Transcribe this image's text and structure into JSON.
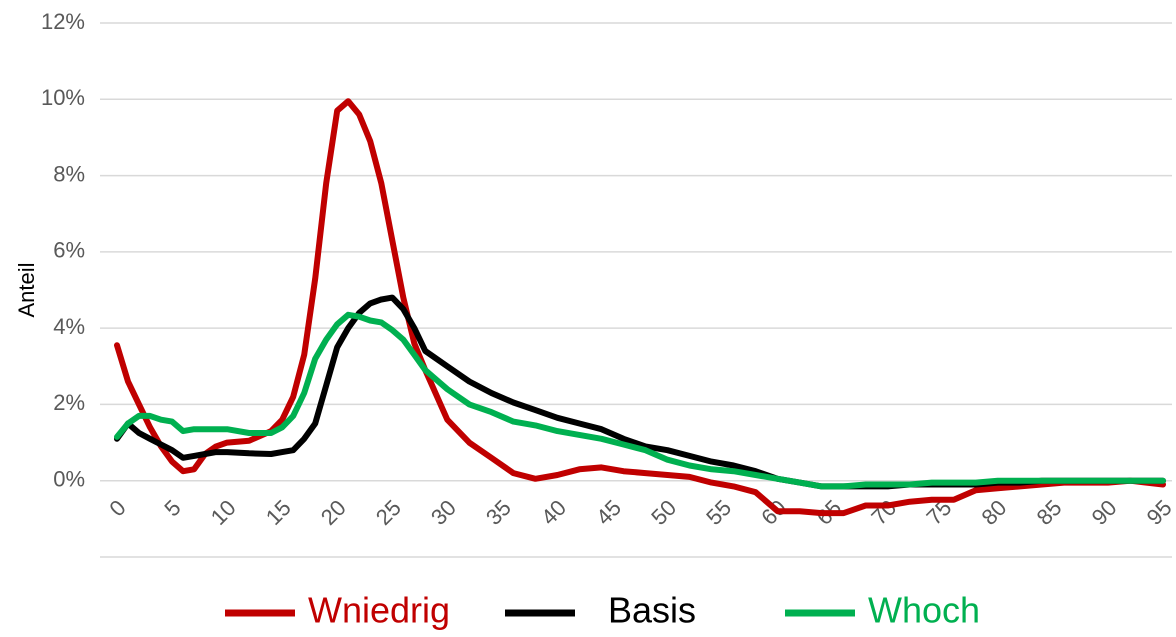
{
  "chart_data": {
    "type": "line",
    "ylabel": "Anteil",
    "x": [
      0,
      1,
      2,
      3,
      4,
      5,
      6,
      7,
      8,
      9,
      10,
      12,
      14,
      15,
      16,
      17,
      18,
      19,
      20,
      21,
      22,
      23,
      24,
      25,
      26,
      27,
      28,
      30,
      32,
      34,
      36,
      38,
      40,
      42,
      44,
      46,
      48,
      50,
      52,
      54,
      56,
      58,
      60,
      62,
      64,
      66,
      68,
      70,
      72,
      74,
      76,
      78,
      80,
      82,
      84,
      86,
      88,
      90,
      92,
      95
    ],
    "series": [
      {
        "name": "Wniedrig",
        "color": "#c00000",
        "values": [
          3.55,
          2.6,
          2.0,
          1.4,
          0.9,
          0.5,
          0.25,
          0.3,
          0.7,
          0.9,
          1.0,
          1.05,
          1.3,
          1.6,
          2.2,
          3.3,
          5.3,
          7.8,
          9.7,
          9.95,
          9.6,
          8.9,
          7.8,
          6.3,
          4.8,
          3.6,
          2.9,
          1.6,
          1.0,
          0.6,
          0.2,
          0.05,
          0.15,
          0.3,
          0.35,
          0.25,
          0.2,
          0.15,
          0.1,
          -0.05,
          -0.15,
          -0.3,
          -0.8,
          -0.8,
          -0.85,
          -0.85,
          -0.65,
          -0.65,
          -0.55,
          -0.5,
          -0.5,
          -0.25,
          -0.2,
          -0.15,
          -0.1,
          -0.05,
          -0.05,
          -0.05,
          0,
          -0.1
        ]
      },
      {
        "name": "Basis",
        "color": "#000000",
        "values": [
          1.1,
          1.5,
          1.25,
          1.1,
          0.95,
          0.8,
          0.6,
          0.65,
          0.7,
          0.75,
          0.75,
          0.72,
          0.7,
          0.75,
          0.8,
          1.1,
          1.5,
          2.5,
          3.5,
          4.0,
          4.4,
          4.65,
          4.75,
          4.8,
          4.5,
          4.0,
          3.4,
          3.0,
          2.6,
          2.3,
          2.05,
          1.85,
          1.65,
          1.5,
          1.35,
          1.1,
          0.9,
          0.8,
          0.65,
          0.5,
          0.4,
          0.25,
          0.05,
          -0.05,
          -0.15,
          -0.15,
          -0.15,
          -0.15,
          -0.1,
          -0.1,
          -0.1,
          -0.1,
          -0.05,
          -0.05,
          0,
          0,
          0,
          0,
          0,
          0
        ]
      },
      {
        "name": "Whoch",
        "color": "#00b050",
        "values": [
          1.15,
          1.5,
          1.7,
          1.7,
          1.6,
          1.55,
          1.3,
          1.35,
          1.35,
          1.35,
          1.35,
          1.25,
          1.25,
          1.4,
          1.7,
          2.3,
          3.2,
          3.7,
          4.1,
          4.35,
          4.3,
          4.2,
          4.15,
          3.95,
          3.7,
          3.3,
          2.9,
          2.4,
          2.0,
          1.8,
          1.55,
          1.45,
          1.3,
          1.2,
          1.1,
          0.95,
          0.8,
          0.55,
          0.4,
          0.3,
          0.25,
          0.15,
          0.05,
          -0.05,
          -0.15,
          -0.15,
          -0.1,
          -0.1,
          -0.1,
          -0.05,
          -0.05,
          -0.05,
          0,
          0,
          0,
          0,
          0,
          0,
          0,
          0
        ]
      }
    ],
    "xlim": [
      0,
      95
    ],
    "xticks": [
      0,
      5,
      10,
      15,
      20,
      25,
      30,
      35,
      40,
      45,
      50,
      55,
      60,
      65,
      70,
      75,
      80,
      85,
      90,
      95
    ],
    "ylim": [
      -2,
      12
    ],
    "yticks": [
      {
        "value": 0,
        "label": "0%"
      },
      {
        "value": 2,
        "label": "2%"
      },
      {
        "value": 4,
        "label": "4%"
      },
      {
        "value": 6,
        "label": "6%"
      },
      {
        "value": 8,
        "label": "8%"
      },
      {
        "value": 10,
        "label": "10%"
      },
      {
        "value": 12,
        "label": "12%"
      }
    ],
    "grid": true,
    "legend": "bottom"
  }
}
